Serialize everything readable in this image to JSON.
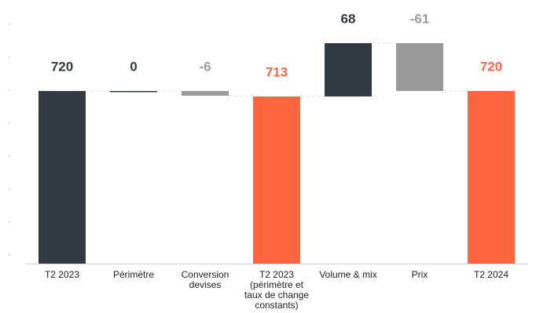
{
  "chart_data": {
    "type": "waterfall",
    "categories": [
      "T2 2023",
      "Périmètre",
      "Conversion\ndevises",
      "T2 2023\n(périmètre et\ntaux de change\nconstants)",
      "Volume & mix",
      "Prix",
      "T2 2024"
    ],
    "values": [
      720,
      0,
      -6,
      713,
      68,
      -61,
      720
    ],
    "bar_kinds": [
      "total",
      "relative",
      "relative",
      "total",
      "relative",
      "relative",
      "total"
    ],
    "colors": [
      "#323b44",
      "#323b44",
      "#9a9a9a",
      "#ff6640",
      "#323b44",
      "#9a9a9a",
      "#ff6640"
    ],
    "ylim": [
      500,
      800
    ]
  }
}
